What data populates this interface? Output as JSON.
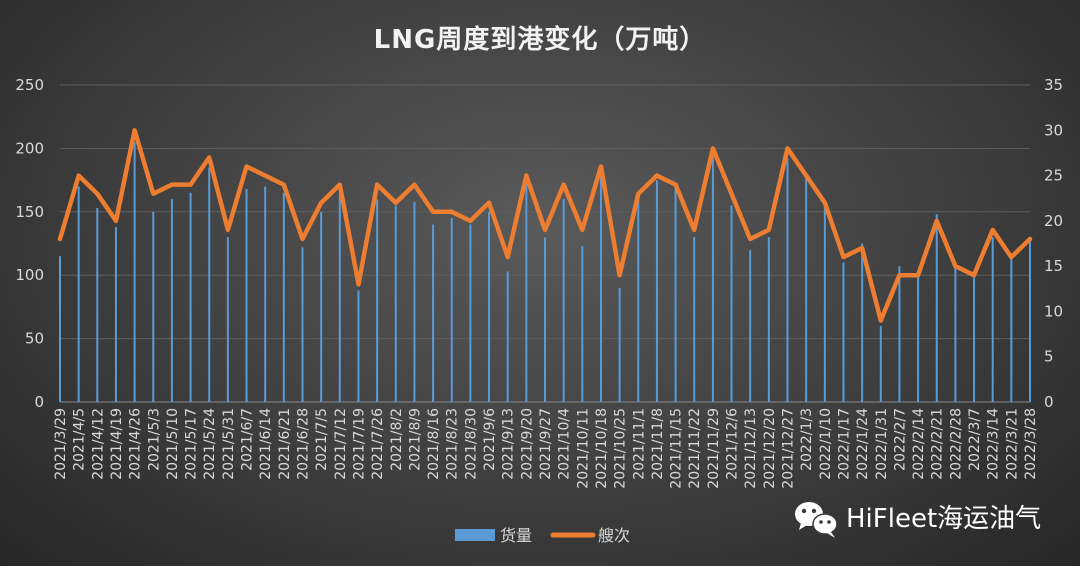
{
  "chart_data": {
    "type": "bar+line",
    "title": "LNG周度到港变化（万吨）",
    "categories": [
      "2021/3/29",
      "2021/4/5",
      "2021/4/12",
      "2021/4/19",
      "2021/4/26",
      "2021/5/3",
      "2021/5/10",
      "2021/5/17",
      "2021/5/24",
      "2021/5/31",
      "2021/6/7",
      "2021/6/14",
      "2021/6/21",
      "2021/6/28",
      "2021/7/5",
      "2021/7/12",
      "2021/7/19",
      "2021/7/26",
      "2021/8/2",
      "2021/8/9",
      "2021/8/16",
      "2021/8/23",
      "2021/8/30",
      "2021/9/6",
      "2021/9/13",
      "2021/9/20",
      "2021/9/27",
      "2021/10/4",
      "2021/10/11",
      "2021/10/18",
      "2021/10/25",
      "2021/11/1",
      "2021/11/8",
      "2021/11/15",
      "2021/11/22",
      "2021/11/29",
      "2021/12/6",
      "2021/12/13",
      "2021/12/20",
      "2021/12/27",
      "2022/1/3",
      "2022/1/10",
      "2022/1/17",
      "2022/1/24",
      "2022/1/31",
      "2022/2/7",
      "2022/2/14",
      "2022/2/21",
      "2022/2/28",
      "2022/3/7",
      "2022/3/14",
      "2022/3/21",
      "2022/3/28"
    ],
    "series": [
      {
        "name": "货量",
        "type": "bar",
        "axis": "left",
        "color": "#5b9bd5",
        "values": [
          115,
          170,
          153,
          138,
          205,
          150,
          160,
          165,
          185,
          130,
          168,
          170,
          165,
          122,
          150,
          165,
          88,
          160,
          155,
          158,
          140,
          145,
          140,
          150,
          103,
          175,
          130,
          160,
          123,
          180,
          90,
          160,
          175,
          170,
          130,
          200,
          155,
          120,
          130,
          192,
          178,
          158,
          110,
          125,
          60,
          107,
          100,
          148,
          110,
          100,
          130,
          115,
          128
        ]
      },
      {
        "name": "艘次",
        "type": "line",
        "axis": "right",
        "color": "#ed7d31",
        "values": [
          18,
          25,
          23,
          20,
          30,
          23,
          24,
          24,
          27,
          19,
          26,
          25,
          24,
          18,
          22,
          24,
          13,
          24,
          22,
          24,
          21,
          21,
          20,
          22,
          16,
          25,
          19,
          24,
          19,
          26,
          14,
          23,
          25,
          24,
          19,
          28,
          23,
          18,
          19,
          28,
          25,
          22,
          16,
          17,
          9,
          14,
          14,
          20,
          15,
          14,
          19,
          16,
          18
        ]
      }
    ],
    "y_left": {
      "min": 0,
      "max": 250,
      "ticks": [
        0,
        50,
        100,
        150,
        200,
        250
      ]
    },
    "y_right": {
      "min": 0,
      "max": 35,
      "ticks": [
        0,
        5,
        10,
        15,
        20,
        25,
        30,
        35
      ]
    },
    "grid": true,
    "legend": "bottom"
  },
  "watermark": {
    "text": "HiFleet海运油气",
    "icon": "wechat-icon"
  }
}
